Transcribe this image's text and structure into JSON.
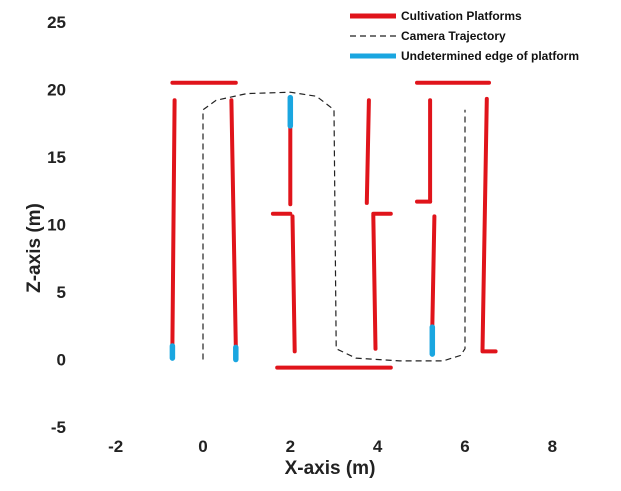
{
  "chart_data": {
    "type": "line",
    "xlabel": "X-axis  (m)",
    "ylabel": "Z-axis  (m)",
    "xlim": [
      -3,
      9
    ],
    "ylim": [
      -5,
      25
    ],
    "xticks": [
      -2,
      0,
      2,
      4,
      6,
      8
    ],
    "yticks": [
      -5,
      0,
      5,
      10,
      15,
      20,
      25
    ],
    "grid": false,
    "legend_position": "top-right",
    "colors": {
      "platform": "#e0141b",
      "trajectory": "#222222",
      "edge": "#1aa6e0"
    },
    "series": [
      {
        "name": "Cultivation Platforms",
        "style": "solid",
        "segments": [
          [
            [
              -0.7,
              20.5
            ],
            [
              0.75,
              20.5
            ]
          ],
          [
            [
              -0.65,
              19.2
            ],
            [
              -0.7,
              1.1
            ]
          ],
          [
            [
              0.65,
              19.2
            ],
            [
              0.75,
              1.0
            ]
          ],
          [
            [
              1.6,
              10.8
            ],
            [
              2.0,
              10.8
            ]
          ],
          [
            [
              2.0,
              19.0
            ],
            [
              2.0,
              11.5
            ]
          ],
          [
            [
              2.05,
              10.6
            ],
            [
              2.1,
              0.6
            ]
          ],
          [
            [
              1.7,
              -0.6
            ],
            [
              4.3,
              -0.6
            ]
          ],
          [
            [
              3.8,
              19.2
            ],
            [
              3.75,
              11.6
            ]
          ],
          [
            [
              3.9,
              10.7
            ],
            [
              3.95,
              0.8
            ]
          ],
          [
            [
              3.9,
              10.8
            ],
            [
              4.3,
              10.8
            ]
          ],
          [
            [
              4.9,
              20.5
            ],
            [
              6.55,
              20.5
            ]
          ],
          [
            [
              5.2,
              19.2
            ],
            [
              5.2,
              11.7
            ]
          ],
          [
            [
              4.9,
              11.7
            ],
            [
              5.2,
              11.7
            ]
          ],
          [
            [
              5.3,
              10.6
            ],
            [
              5.25,
              2.4
            ]
          ],
          [
            [
              6.5,
              19.3
            ],
            [
              6.4,
              0.7
            ]
          ],
          [
            [
              6.4,
              0.6
            ],
            [
              6.7,
              0.6
            ]
          ]
        ]
      },
      {
        "name": "Camera Trajectory",
        "style": "dashed",
        "points": [
          [
            0,
            0
          ],
          [
            0,
            18.5
          ],
          [
            0.3,
            19.2
          ],
          [
            1.0,
            19.7
          ],
          [
            2.0,
            19.8
          ],
          [
            2.6,
            19.5
          ],
          [
            3.0,
            18.5
          ],
          [
            3.05,
            0.8
          ],
          [
            3.5,
            0.1
          ],
          [
            4.5,
            -0.1
          ],
          [
            5.5,
            -0.1
          ],
          [
            5.9,
            0.3
          ],
          [
            6.0,
            0.8
          ],
          [
            6.0,
            18.5
          ]
        ]
      },
      {
        "name": "Undetermined edge of platform",
        "style": "solid",
        "segments": [
          [
            [
              -0.7,
              1.0
            ],
            [
              -0.7,
              0.1
            ]
          ],
          [
            [
              0.75,
              0.9
            ],
            [
              0.75,
              0.0
            ]
          ],
          [
            [
              2.0,
              19.4
            ],
            [
              2.0,
              17.3
            ]
          ],
          [
            [
              5.25,
              2.4
            ],
            [
              5.25,
              0.4
            ]
          ]
        ]
      }
    ]
  }
}
